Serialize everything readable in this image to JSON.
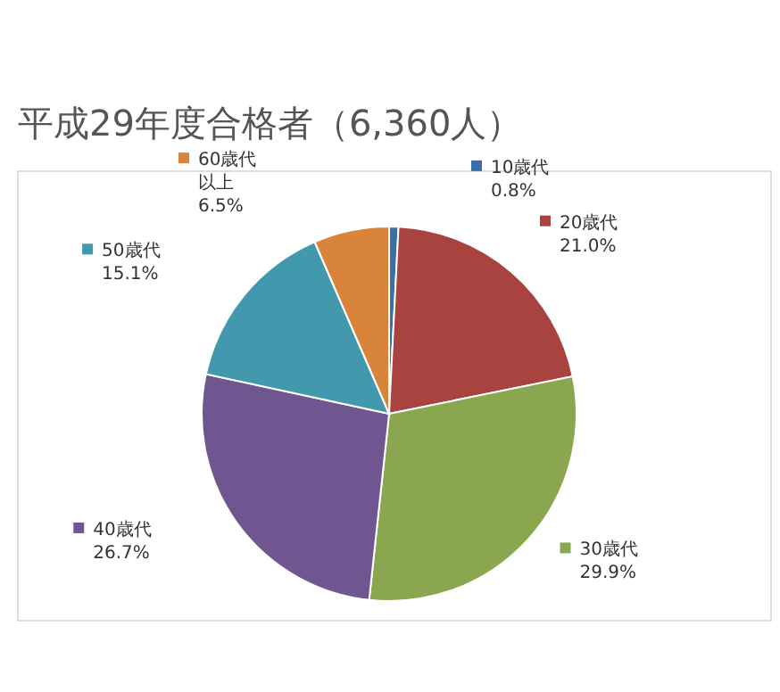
{
  "chart_data": {
    "type": "pie",
    "title": "平成29年度合格者（6,360人）",
    "categories": [
      "10歳代",
      "20歳代",
      "30歳代",
      "40歳代",
      "50歳代",
      "60歳代以上"
    ],
    "values": [
      0.8,
      21.0,
      29.9,
      26.7,
      15.1,
      6.5
    ],
    "value_labels": [
      "0.8%",
      "21.0%",
      "29.9%",
      "26.7%",
      "15.1%",
      "6.5%"
    ],
    "colors": [
      "#3b6ea5",
      "#a9433f",
      "#8aa64f",
      "#6f5690",
      "#4299ae",
      "#d9843b"
    ],
    "legend": "top left"
  }
}
